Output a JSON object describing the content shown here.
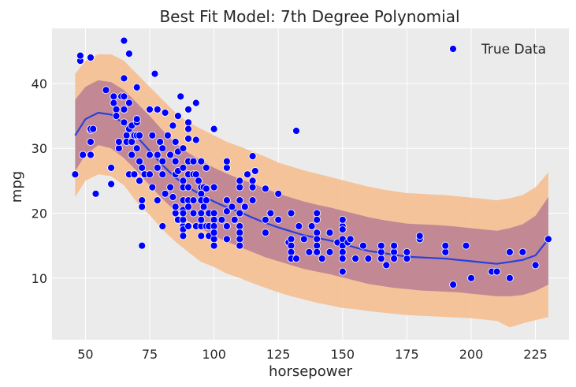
{
  "chart_data": {
    "type": "scatter",
    "title": "Best Fit Model: 7th Degree Polynomial",
    "xlabel": "horsepower",
    "ylabel": "mpg",
    "xlim": [
      37,
      238
    ],
    "ylim": [
      0.5,
      48.5
    ],
    "xticks": [
      50,
      75,
      100,
      125,
      150,
      175,
      200,
      225
    ],
    "yticks": [
      10,
      20,
      30,
      40
    ],
    "grid": true,
    "legend": {
      "position": "top-right",
      "entries": [
        "True Data"
      ]
    },
    "colors": {
      "background": "#ebebeb",
      "grid": "#ffffff",
      "points": "#0000ff",
      "point_edge": "#ffffff",
      "fit_line": "#2a3fe0",
      "band_outer": "#f5c196",
      "band_inner": "#b97f94"
    },
    "fit": {
      "x": [
        46,
        50,
        55,
        60,
        65,
        70,
        75,
        80,
        85,
        90,
        95,
        100,
        105,
        110,
        115,
        120,
        125,
        130,
        135,
        140,
        145,
        150,
        155,
        160,
        165,
        170,
        175,
        180,
        185,
        190,
        195,
        200,
        205,
        210,
        215,
        220,
        225,
        230
      ],
      "y": [
        32,
        34.5,
        35.5,
        35.2,
        33.8,
        31.8,
        29.6,
        27.4,
        25.5,
        24,
        22.8,
        21.8,
        20.9,
        20.2,
        19.3,
        18.5,
        17.8,
        17.2,
        16.6,
        16.2,
        15.8,
        15.3,
        14.7,
        14.2,
        13.9,
        13.6,
        13.3,
        13.2,
        13.1,
        13,
        12.8,
        12.6,
        12.4,
        12.2,
        12.5,
        12.8,
        13.5,
        16
      ],
      "inner_lo": [
        26.5,
        29,
        30.5,
        30,
        28.5,
        26.5,
        24.3,
        22.2,
        20.3,
        18.8,
        17.6,
        16.5,
        15.6,
        14.8,
        14,
        13.2,
        12.6,
        12,
        11.4,
        11,
        10.6,
        10.1,
        9.6,
        9.1,
        8.8,
        8.5,
        8.3,
        8.1,
        8,
        7.9,
        7.8,
        7.6,
        7.4,
        7.2,
        7.2,
        7.4,
        8,
        9
      ],
      "inner_hi": [
        37.5,
        39.5,
        40.5,
        40.2,
        39,
        37,
        35,
        32.8,
        30.8,
        29.3,
        28.1,
        27,
        26.1,
        25.3,
        24.6,
        23.8,
        23,
        22.4,
        21.8,
        21.3,
        20.9,
        20.4,
        19.9,
        19.4,
        19,
        18.7,
        18.4,
        18.3,
        18.2,
        18.1,
        17.9,
        17.7,
        17.5,
        17.3,
        17.7,
        18.3,
        19.6,
        22.5
      ],
      "outer_lo": [
        22.5,
        25,
        26,
        25.7,
        24.3,
        21.7,
        19.7,
        17.5,
        15.6,
        14,
        12.5,
        11.7,
        10.7,
        10,
        9.2,
        8.5,
        7.8,
        7.2,
        6.7,
        6.2,
        5.8,
        5.4,
        5.2,
        4.9,
        4.7,
        4.5,
        4.3,
        4.2,
        4.1,
        4,
        3.9,
        3.8,
        3.6,
        3.4,
        2.4,
        3,
        3.5,
        4
      ],
      "outer_hi": [
        41.5,
        43.5,
        44.5,
        44.5,
        43.5,
        41.5,
        39.5,
        37.5,
        35.5,
        34,
        33,
        32,
        31,
        30.3,
        29.5,
        28.7,
        27.8,
        27.2,
        26.6,
        26.1,
        25.6,
        25.1,
        24.6,
        24.1,
        23.7,
        23.4,
        23.1,
        23,
        22.9,
        22.8,
        22.6,
        22.4,
        22.2,
        22,
        22.3,
        22.8,
        24,
        26.3
      ]
    },
    "series": [
      {
        "name": "True Data",
        "points": [
          [
            46,
            26
          ],
          [
            48,
            43.5
          ],
          [
            48,
            44.3
          ],
          [
            49,
            29
          ],
          [
            52,
            29
          ],
          [
            52,
            32.8
          ],
          [
            52,
            33
          ],
          [
            52,
            31
          ],
          [
            53,
            33
          ],
          [
            52,
            44
          ],
          [
            54,
            23
          ],
          [
            58,
            39
          ],
          [
            60,
            27
          ],
          [
            60,
            24.5
          ],
          [
            61,
            38
          ],
          [
            61,
            37
          ],
          [
            62,
            36
          ],
          [
            62,
            35
          ],
          [
            63,
            30
          ],
          [
            63,
            31
          ],
          [
            64,
            38
          ],
          [
            65,
            38
          ],
          [
            65,
            40.8
          ],
          [
            65,
            46.6
          ],
          [
            67,
            44.6
          ],
          [
            65,
            36
          ],
          [
            65,
            34
          ],
          [
            66,
            32
          ],
          [
            66,
            31
          ],
          [
            67,
            33
          ],
          [
            67,
            37
          ],
          [
            67,
            26
          ],
          [
            68,
            29
          ],
          [
            68,
            31
          ],
          [
            68,
            33.5
          ],
          [
            69,
            32
          ],
          [
            69,
            26
          ],
          [
            70,
            34
          ],
          [
            70,
            32
          ],
          [
            70,
            30
          ],
          [
            70,
            39.4
          ],
          [
            70,
            34.5
          ],
          [
            71,
            28
          ],
          [
            71,
            25
          ],
          [
            71,
            32
          ],
          [
            72,
            21
          ],
          [
            72,
            22
          ],
          [
            72,
            15
          ],
          [
            72,
            27
          ],
          [
            73,
            26
          ],
          [
            75,
            29
          ],
          [
            75,
            36
          ],
          [
            75,
            26
          ],
          [
            76,
            32
          ],
          [
            76,
            24
          ],
          [
            77,
            41.5
          ],
          [
            78,
            36
          ],
          [
            78,
            29
          ],
          [
            78,
            27
          ],
          [
            78,
            22
          ],
          [
            79,
            31
          ],
          [
            80,
            30
          ],
          [
            80,
            28
          ],
          [
            80,
            26
          ],
          [
            80,
            18
          ],
          [
            81,
            23
          ],
          [
            81,
            35.5
          ],
          [
            82,
            32
          ],
          [
            83,
            29
          ],
          [
            83,
            24
          ],
          [
            84,
            33.5
          ],
          [
            84,
            22.5
          ],
          [
            85,
            31
          ],
          [
            85,
            26
          ],
          [
            85,
            28
          ],
          [
            85,
            20
          ],
          [
            85,
            21
          ],
          [
            86,
            26.5
          ],
          [
            86,
            35
          ],
          [
            86,
            29.5
          ],
          [
            86,
            19
          ],
          [
            87,
            38
          ],
          [
            88,
            30
          ],
          [
            88,
            27
          ],
          [
            88,
            25
          ],
          [
            88,
            24
          ],
          [
            88,
            20.5
          ],
          [
            88,
            18
          ],
          [
            88,
            19
          ],
          [
            88,
            17.5
          ],
          [
            88,
            22
          ],
          [
            88,
            16.5
          ],
          [
            88,
            20
          ],
          [
            90,
            28
          ],
          [
            90,
            26
          ],
          [
            90,
            24
          ],
          [
            90,
            22
          ],
          [
            90,
            18
          ],
          [
            90,
            31.5
          ],
          [
            90,
            36
          ],
          [
            90,
            34
          ],
          [
            90,
            33
          ],
          [
            90,
            21
          ],
          [
            92,
            28
          ],
          [
            92,
            22
          ],
          [
            92,
            20
          ],
          [
            92,
            26
          ],
          [
            93,
            18
          ],
          [
            93,
            26
          ],
          [
            93,
            31.3
          ],
          [
            93,
            37
          ],
          [
            94,
            25
          ],
          [
            95,
            24
          ],
          [
            95,
            23
          ],
          [
            95,
            22
          ],
          [
            95,
            20
          ],
          [
            95,
            18
          ],
          [
            95,
            16.5
          ],
          [
            95,
            19
          ],
          [
            95,
            28
          ],
          [
            96,
            21
          ],
          [
            96,
            24
          ],
          [
            97,
            27
          ],
          [
            97,
            18
          ],
          [
            97,
            22
          ],
          [
            97,
            23.8
          ],
          [
            98,
            20
          ],
          [
            98,
            16.5
          ],
          [
            98,
            18
          ],
          [
            100,
            24
          ],
          [
            100,
            20
          ],
          [
            100,
            19
          ],
          [
            100,
            18
          ],
          [
            100,
            16
          ],
          [
            100,
            15
          ],
          [
            100,
            17
          ],
          [
            100,
            33
          ],
          [
            103,
            19
          ],
          [
            105,
            27
          ],
          [
            105,
            22
          ],
          [
            105,
            20.3
          ],
          [
            105,
            18
          ],
          [
            105,
            16
          ],
          [
            105,
            28
          ],
          [
            107,
            21
          ],
          [
            108,
            19
          ],
          [
            110,
            24
          ],
          [
            110,
            22
          ],
          [
            110,
            20
          ],
          [
            110,
            18
          ],
          [
            110,
            17
          ],
          [
            110,
            16
          ],
          [
            110,
            15
          ],
          [
            110,
            25
          ],
          [
            112,
            21
          ],
          [
            113,
            26
          ],
          [
            115,
            25
          ],
          [
            115,
            24
          ],
          [
            115,
            28.8
          ],
          [
            115,
            22
          ],
          [
            116,
            26.5
          ],
          [
            120,
            19
          ],
          [
            120,
            17
          ],
          [
            120,
            23.8
          ],
          [
            122,
            20
          ],
          [
            125,
            23
          ],
          [
            125,
            19
          ],
          [
            129,
            15.5
          ],
          [
            130,
            16
          ],
          [
            130,
            15
          ],
          [
            130,
            14
          ],
          [
            130,
            20
          ],
          [
            130,
            13
          ],
          [
            132,
            13
          ],
          [
            132,
            32.7
          ],
          [
            133,
            18
          ],
          [
            135,
            16
          ],
          [
            137,
            14
          ],
          [
            138,
            18
          ],
          [
            140,
            17
          ],
          [
            140,
            16
          ],
          [
            140,
            15
          ],
          [
            140,
            14
          ],
          [
            140,
            20
          ],
          [
            140,
            19
          ],
          [
            142,
            13
          ],
          [
            145,
            17
          ],
          [
            145,
            14
          ],
          [
            148,
            15.5
          ],
          [
            150,
            18
          ],
          [
            150,
            17.5
          ],
          [
            150,
            16
          ],
          [
            150,
            15
          ],
          [
            150,
            14
          ],
          [
            150,
            13
          ],
          [
            150,
            19
          ],
          [
            150,
            11
          ],
          [
            152,
            15.5
          ],
          [
            153,
            16
          ],
          [
            155,
            13
          ],
          [
            158,
            15
          ],
          [
            160,
            13
          ],
          [
            165,
            13
          ],
          [
            165,
            14
          ],
          [
            165,
            15
          ],
          [
            167,
            12
          ],
          [
            170,
            14
          ],
          [
            170,
            13
          ],
          [
            170,
            15
          ],
          [
            175,
            13
          ],
          [
            175,
            14
          ],
          [
            180,
            16
          ],
          [
            180,
            16.5
          ],
          [
            190,
            14
          ],
          [
            190,
            15
          ],
          [
            193,
            9
          ],
          [
            198,
            15
          ],
          [
            200,
            10
          ],
          [
            208,
            11
          ],
          [
            210,
            11
          ],
          [
            215,
            10
          ],
          [
            215,
            14
          ],
          [
            220,
            14
          ],
          [
            225,
            12
          ],
          [
            230,
            16
          ]
        ]
      }
    ]
  }
}
